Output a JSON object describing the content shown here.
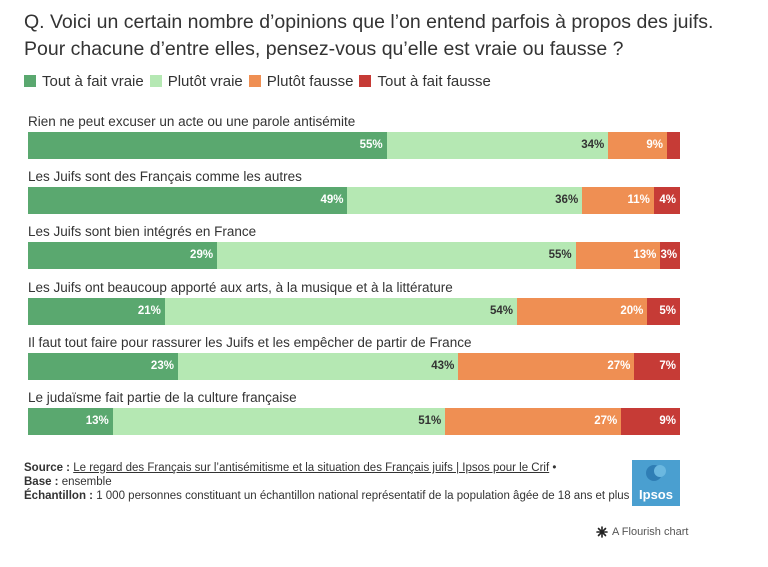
{
  "title": "Q. Voici un certain nombre d’opinions que l’on entend parfois à propos des juifs. Pour chacune d’entre elles, pensez-vous qu’elle est vraie ou fausse ?",
  "legend": [
    {
      "label": "Tout à fait vraie",
      "color": "#5aa86f"
    },
    {
      "label": "Plutôt vraie",
      "color": "#b5e8b3"
    },
    {
      "label": "Plutôt fausse",
      "color": "#ef8f53"
    },
    {
      "label": "Tout à fait fausse",
      "color": "#c63b36"
    }
  ],
  "chart_data": {
    "type": "bar",
    "orientation": "horizontal-stacked-100",
    "title": "Q. Voici un certain nombre d’opinions que l’on entend parfois à propos des juifs. Pour chacune d’entre elles, pensez-vous qu’elle est vraie ou fausse ?",
    "categories": [
      "Rien ne peut excuser un acte ou une parole antisémite",
      "Les Juifs sont des Français comme les autres",
      "Les Juifs sont bien intégrés en France",
      "Les Juifs ont beaucoup apporté aux arts, à la musique et à la littérature",
      "Il faut tout faire pour rassurer les Juifs et les empêcher de partir de France",
      "Le judaïsme fait partie de la culture française"
    ],
    "series": [
      {
        "name": "Tout à fait vraie",
        "color": "#5aa86f",
        "values": [
          55,
          49,
          29,
          21,
          23,
          13
        ]
      },
      {
        "name": "Plutôt vraie",
        "color": "#b5e8b3",
        "values": [
          34,
          36,
          55,
          54,
          43,
          51
        ]
      },
      {
        "name": "Plutôt fausse",
        "color": "#ef8f53",
        "values": [
          9,
          11,
          13,
          20,
          27,
          27
        ]
      },
      {
        "name": "Tout à fait fausse",
        "color": "#c63b36",
        "values": [
          2,
          4,
          3,
          5,
          7,
          9
        ]
      }
    ],
    "data_labels": [
      [
        "55%",
        "34%",
        "9%",
        ""
      ],
      [
        "49%",
        "36%",
        "11%",
        "4%"
      ],
      [
        "29%",
        "55%",
        "13%",
        "3%"
      ],
      [
        "21%",
        "54%",
        "20%",
        "5%"
      ],
      [
        "23%",
        "43%",
        "27%",
        "7%"
      ],
      [
        "13%",
        "51%",
        "27%",
        "9%"
      ]
    ],
    "label_colors": [
      "#ffffff",
      "#333333",
      "#ffffff",
      "#ffffff"
    ],
    "xlim": [
      0,
      100
    ],
    "legend_position": "top-left"
  },
  "footer": {
    "source_label": "Source :",
    "source_link": "Le regard des Français sur l’antisémitisme et la situation des Français juifs | Ipsos pour le Crif",
    "source_suffix": " •",
    "base_label": "Base :",
    "base_value": " ensemble",
    "sample_label": "Échantillon :",
    "sample_value": " 1 000 personnes constituant un échantillon national représentatif de la population âgée de 18 ans et plus"
  },
  "logo": {
    "text": "Ipsos",
    "color": "#4a9fd0"
  },
  "flourish": {
    "text": "A Flourish chart"
  }
}
